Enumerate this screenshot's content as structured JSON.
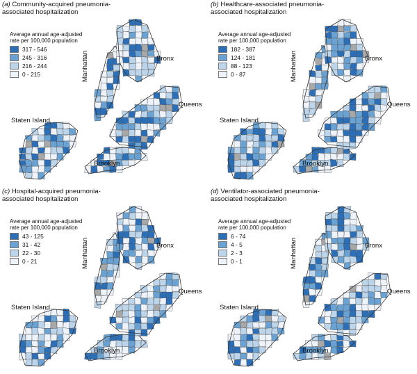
{
  "panels": [
    {
      "letter": "(a)",
      "title_line1": "Community-acquired pneumonia-",
      "title_line2": "associated hospitalization",
      "legend_title_line1": "Average annual age-adjusted",
      "legend_title_line2": "rate per 100,000 population",
      "legend_items": [
        "317 - 546",
        "245 - 316",
        "216 - 244",
        "0 - 215"
      ]
    },
    {
      "letter": "(b)",
      "title_line1": "Healthcare-associated pneumonia-",
      "title_line2": "associated hospitalization",
      "legend_title_line1": "Average annual age-adjusted",
      "legend_title_line2": "rate per 100,000 population",
      "legend_items": [
        "182 - 387",
        "124 - 181",
        "88 - 123",
        "0 - 87"
      ]
    },
    {
      "letter": "(c)",
      "title_line1": "Hospital-acquired pneumonia-",
      "title_line2": "associated hospitalization",
      "legend_title_line1": "Average annual age-adjusted",
      "legend_title_line2": "rate per 100,000 population",
      "legend_items": [
        "43 - 125",
        "31 - 42",
        "22 - 30",
        "0 - 21"
      ]
    },
    {
      "letter": "(d)",
      "title_line1": "Ventilator-associated pneumonia-",
      "title_line2": "associated hospitalization",
      "legend_title_line1": "Average annual age-adjusted",
      "legend_title_line2": "rate per 100,000 population",
      "legend_items": [
        "6 - 74",
        "4 - 5",
        "2 - 3",
        "0 - 1"
      ]
    }
  ],
  "boroughs": {
    "manhattan": "Manhattan",
    "bronx": "Bronx",
    "queens": "Queens",
    "staten_island": "Staten Island",
    "brooklyn": "Brooklyn"
  },
  "colors": {
    "class1": "#2d6fb7",
    "class2": "#6aa3d3",
    "class3": "#bcd5ea",
    "class4": "#eef3fa",
    "no_data": "#a8a8a8",
    "border": "#4a4a4a"
  }
}
